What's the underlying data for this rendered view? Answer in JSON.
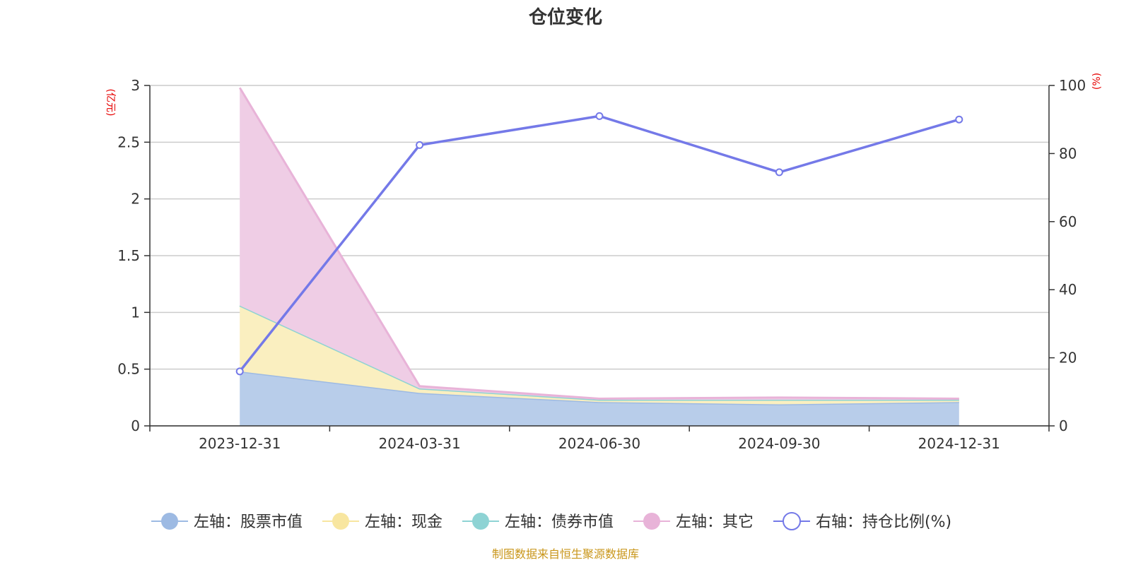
{
  "chart_data": {
    "type": "area",
    "title": "仓位变化",
    "left_unit": "(亿元)",
    "right_unit": "(%)",
    "categories": [
      "2023-12-31",
      "2024-03-31",
      "2024-06-30",
      "2024-09-30",
      "2024-12-31"
    ],
    "left_axis": {
      "min": 0,
      "max": 3,
      "ticks": [
        "0",
        "0.5",
        "1",
        "1.5",
        "2",
        "2.5",
        "3"
      ]
    },
    "right_axis": {
      "min": 0,
      "max": 100,
      "ticks": [
        "0",
        "20",
        "40",
        "60",
        "80",
        "100"
      ]
    },
    "stacked": true,
    "grid": true,
    "legend_position": "bottom",
    "series": [
      {
        "name": "左轴：股票市值",
        "axis": "left",
        "kind": "area",
        "color": "#9dbae3",
        "fill": "#b8cdea",
        "values": [
          0.48,
          0.29,
          0.21,
          0.19,
          0.21
        ]
      },
      {
        "name": "左轴：现金",
        "axis": "left",
        "kind": "area",
        "color": "#f8e6a0",
        "fill": "#faefc0",
        "values": [
          0.58,
          0.04,
          0.02,
          0.04,
          0.02
        ]
      },
      {
        "name": "左轴：债券市值",
        "axis": "left",
        "kind": "area",
        "color": "#8ed3d4",
        "fill": "#b6e4e4",
        "values": [
          0,
          0,
          0,
          0,
          0
        ]
      },
      {
        "name": "左轴：其它",
        "axis": "left",
        "kind": "area",
        "color": "#e8b3d8",
        "fill": "#efcde5",
        "values": [
          1.92,
          0.02,
          0.01,
          0.02,
          0.01
        ]
      },
      {
        "name": "右轴：持仓比例(%)",
        "axis": "right",
        "kind": "line",
        "color": "#7479e8",
        "values": [
          16,
          82.5,
          91,
          74.5,
          90
        ]
      }
    ],
    "source": "制图数据来自恒生聚源数据库"
  }
}
